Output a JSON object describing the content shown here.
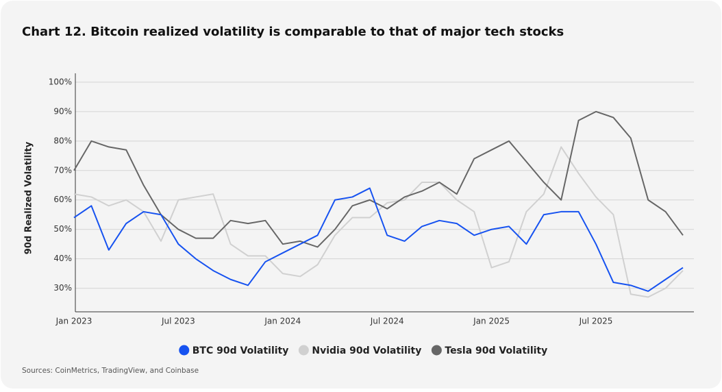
{
  "chart_data": {
    "type": "line",
    "title": "Chart 12.  Bitcoin realized volatility is comparable to that of major tech stocks",
    "y_label": "90d Realized Volatility",
    "source": "Sources: CoinMetrics, TradingView, and Coinbase",
    "x": [
      "Jan 2023",
      "Feb 2023",
      "Mar 2023",
      "Apr 2023",
      "May 2023",
      "Jun 2023",
      "Jul 2023",
      "Aug 2023",
      "Sep 2023",
      "Oct 2023",
      "Nov 2023",
      "Dec 2023",
      "Jan 2024",
      "Feb 2024",
      "Mar 2024",
      "Apr 2024",
      "May 2024",
      "Jun 2024",
      "Jul 2024",
      "Aug 2024",
      "Sep 2024",
      "Oct 2024",
      "Nov 2024",
      "Dec 2024",
      "Jan 2025",
      "Feb 2025",
      "Mar 2025",
      "Apr 2025",
      "May 2025",
      "Jun 2025",
      "Jul 2025",
      "Aug 2025",
      "Sep 2025",
      "Oct 2025",
      "Nov 2025",
      "Dec 2025"
    ],
    "xticks": [
      "Jan 2023",
      "Jul 2023",
      "Jan 2024",
      "Jul 2024",
      "Jan 2025",
      "Jul 2025"
    ],
    "ylim": [
      22,
      103
    ],
    "yticks": [
      {
        "value": 30,
        "label": "30%"
      },
      {
        "value": 40,
        "label": "40%"
      },
      {
        "value": 50,
        "label": "50%"
      },
      {
        "value": 60,
        "label": "60%"
      },
      {
        "value": 70,
        "label": "70%"
      },
      {
        "value": 80,
        "label": "80%"
      },
      {
        "value": 90,
        "label": "90%"
      },
      {
        "value": 100,
        "label": "100%"
      }
    ],
    "grid": true,
    "legend": "bottom",
    "series": [
      {
        "name": "Nvidia 90d Volatility",
        "color": "#d0d0d0",
        "values": [
          62,
          61,
          58,
          60,
          56,
          46,
          60,
          61,
          62,
          45,
          41,
          41,
          35,
          34,
          38,
          48,
          54,
          54,
          59,
          60,
          66,
          66,
          60,
          56,
          37,
          39,
          56,
          62,
          78,
          69,
          61,
          55,
          28,
          27,
          30,
          36
        ]
      },
      {
        "name": "Tesla 90d Volatility",
        "color": "#666666",
        "values": [
          70,
          80,
          78,
          77,
          65,
          55,
          50,
          47,
          47,
          53,
          52,
          53,
          45,
          46,
          44,
          50,
          58,
          60,
          57,
          61,
          63,
          66,
          62,
          74,
          77,
          80,
          73,
          66,
          60,
          87,
          90,
          88,
          81,
          60,
          56,
          48
        ]
      },
      {
        "name": "BTC 90d Volatility",
        "color": "#1652f0",
        "values": [
          54,
          58,
          43,
          52,
          56,
          55,
          45,
          40,
          36,
          33,
          31,
          39,
          42,
          45,
          48,
          60,
          61,
          64,
          48,
          46,
          51,
          53,
          52,
          48,
          50,
          51,
          45,
          55,
          56,
          56,
          45,
          32,
          31,
          29,
          33,
          37
        ]
      }
    ]
  }
}
